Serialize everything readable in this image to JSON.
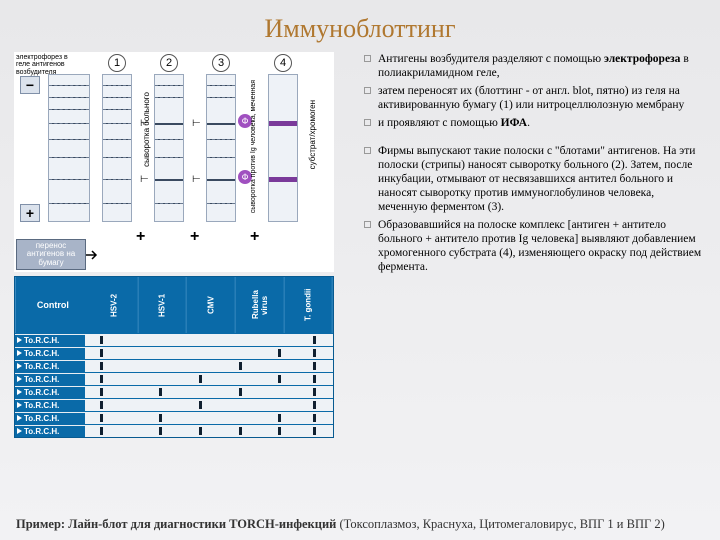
{
  "title": {
    "text": "Иммуноблоттинг",
    "color": "#b07830",
    "fontsize": 26
  },
  "diagram": {
    "ep_label": "электрофорез в геле антигенов возбудителя",
    "transfer_label": "перенос антигенов на бумагу",
    "lane_numbers": [
      "1",
      "2",
      "3",
      "4"
    ],
    "vert_labels": [
      "сыворотка больного",
      "сыворотка против Ig человека, меченная",
      "субстрат/хромоген"
    ],
    "minus": "−",
    "plus": "+",
    "phi": "Ф",
    "colors": {
      "bg": "#ffffff",
      "lane": "#eef2f7",
      "lane_border": "#9aa8bc",
      "band": "#3a4a60",
      "purple": "#7a3a9a"
    }
  },
  "lineblot": {
    "bg": "#0a6aa8",
    "strip_bg": "#eef2f6",
    "head": [
      "Control",
      "HSV-2",
      "HSV-1",
      "CMV",
      "Rubella virus",
      "T. gondii"
    ],
    "row_label": "To.R.C.H.",
    "rows": [
      {
        "marks_pct": [
          6,
          92
        ]
      },
      {
        "marks_pct": [
          6,
          78,
          92
        ]
      },
      {
        "marks_pct": [
          6,
          62,
          92
        ]
      },
      {
        "marks_pct": [
          6,
          46,
          78,
          92
        ]
      },
      {
        "marks_pct": [
          6,
          30,
          62,
          92
        ]
      },
      {
        "marks_pct": [
          6,
          46,
          92
        ]
      },
      {
        "marks_pct": [
          6,
          30,
          78,
          92
        ]
      },
      {
        "marks_pct": [
          6,
          30,
          46,
          62,
          78,
          92
        ]
      }
    ]
  },
  "bullets": [
    {
      "html": "Антигены возбудителя разделяют с помощью <b>электрофореза</b> в полиакриламидном геле,"
    },
    {
      "html": "затем переносят их (блоттинг - от англ. blot, пятно) из геля на активированную бумагу (1) или нитроцеллюлозную мембрану"
    },
    {
      "html": "и проявляют с помощью <b>ИФА</b>."
    },
    {
      "spacer": true
    },
    {
      "html": "Фирмы выпускают такие полоски с \"блотами\" антигенов. На эти полоски (стрипы) наносят сыворотку больного (2). Затем, после инкубации, отмывают от несвязавшихся антител больного и наносят сыворотку против иммуноглобулинов человека, меченную ферментом (3)."
    },
    {
      "html": "Образовавшийся на полоске комплекс [антиген + антитело больного + антитело против Ig человека] выявляют добавлением хромогенного субстрата (4), изменяющего окраску под действием фермента."
    }
  ],
  "caption": {
    "bold": "Пример: Лайн-блот для диагностики TORCH-инфекций",
    "rest": " (Токсоплазмоз, Краснуха, Цитомегаловирус, ВПГ 1 и ВПГ 2)"
  }
}
